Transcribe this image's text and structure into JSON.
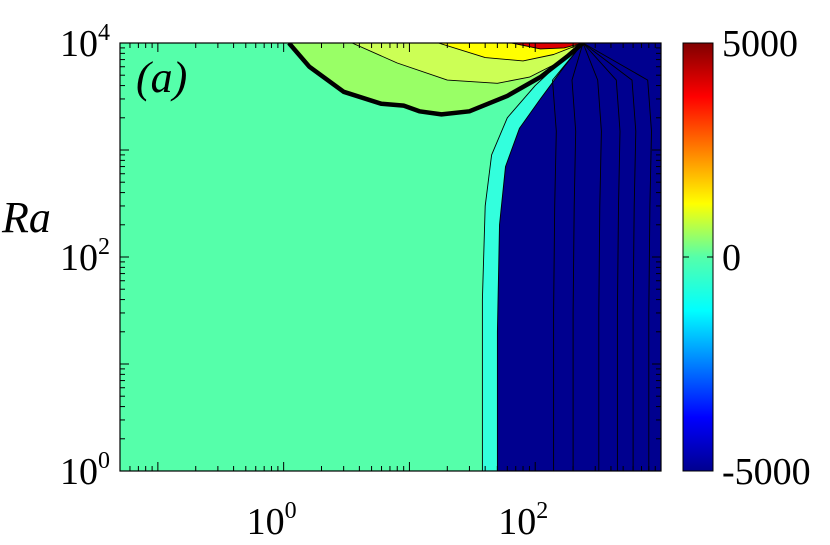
{
  "chart_data": {
    "type": "heatmap",
    "title": "",
    "panel_label": "(a)",
    "xlabel": "",
    "ylabel": "Ra",
    "xscale": "log",
    "yscale": "log",
    "xlim": [
      0.05,
      1000
    ],
    "ylim": [
      1,
      10000
    ],
    "x_ticks": [
      {
        "value": 1,
        "base": "10",
        "exp": "0"
      },
      {
        "value": 100,
        "base": "10",
        "exp": "2"
      }
    ],
    "y_ticks": [
      {
        "value": 1,
        "base": "10",
        "exp": "0"
      },
      {
        "value": 100,
        "base": "10",
        "exp": "2"
      },
      {
        "value": 10000,
        "base": "10",
        "exp": "4"
      }
    ],
    "colorbar": {
      "colormap": "jet",
      "range": [
        -5000,
        5000
      ],
      "ticks": [
        {
          "value": 5000,
          "label": "5000"
        },
        {
          "value": 0,
          "label": "0"
        },
        {
          "value": -5000,
          "label": "-5000"
        }
      ]
    },
    "regions": [
      {
        "level": "0",
        "color": "#55FFAA"
      },
      {
        "level": "500",
        "color": "#99FF66"
      },
      {
        "level": "1500",
        "color": "#CCFF55"
      },
      {
        "level": "2500",
        "color": "#FFFF00"
      },
      {
        "level": "4500",
        "color": "#DD0000"
      },
      {
        "level": "-700",
        "color": "#33FFDD"
      },
      {
        "level": "-5000",
        "color": "#00008F"
      }
    ],
    "boundaries": [
      {
        "id": "zero-contour",
        "emphasis": "bold",
        "points": [
          [
            1.1,
            10000
          ],
          [
            1.6,
            6000
          ],
          [
            3,
            3500
          ],
          [
            6,
            2700
          ],
          [
            9,
            2600
          ],
          [
            12,
            2300
          ],
          [
            18,
            2150
          ],
          [
            30,
            2300
          ],
          [
            60,
            3200
          ],
          [
            110,
            4800
          ],
          [
            180,
            7500
          ],
          [
            240,
            10000
          ]
        ]
      },
      {
        "id": "green-contour",
        "emphasis": "thin",
        "points": [
          [
            3.5,
            10000
          ],
          [
            8,
            6500
          ],
          [
            20,
            4500
          ],
          [
            50,
            4200
          ],
          [
            90,
            4800
          ],
          [
            150,
            6500
          ],
          [
            240,
            10000
          ]
        ]
      },
      {
        "id": "yellow-contour",
        "emphasis": "thin",
        "points": [
          [
            17,
            10000
          ],
          [
            40,
            7300
          ],
          [
            80,
            6800
          ],
          [
            140,
            7800
          ],
          [
            240,
            10000
          ]
        ]
      },
      {
        "id": "red-contour",
        "emphasis": "thin",
        "points": [
          [
            65,
            10000
          ],
          [
            110,
            8800
          ],
          [
            170,
            9000
          ],
          [
            240,
            10000
          ]
        ]
      },
      {
        "id": "cyan-left",
        "emphasis": "thin",
        "points": [
          [
            38,
            1
          ],
          [
            38,
            40
          ],
          [
            40,
            300
          ],
          [
            45,
            900
          ],
          [
            60,
            2000
          ],
          [
            100,
            4000
          ],
          [
            160,
            6700
          ],
          [
            240,
            10000
          ]
        ]
      },
      {
        "id": "dark-left",
        "emphasis": "thin",
        "points": [
          [
            50,
            1
          ],
          [
            50,
            20
          ],
          [
            52,
            200
          ],
          [
            58,
            700
          ],
          [
            75,
            1600
          ],
          [
            110,
            3000
          ],
          [
            170,
            6000
          ],
          [
            240,
            10000
          ]
        ]
      }
    ],
    "dark_region_lines": [
      {
        "x_bottom": 140
      },
      {
        "x_bottom": 200
      },
      {
        "x_bottom": 320
      },
      {
        "x_bottom": 450
      },
      {
        "x_bottom": 600
      },
      {
        "x_bottom": 800
      }
    ],
    "grid": false,
    "legend": "none"
  }
}
